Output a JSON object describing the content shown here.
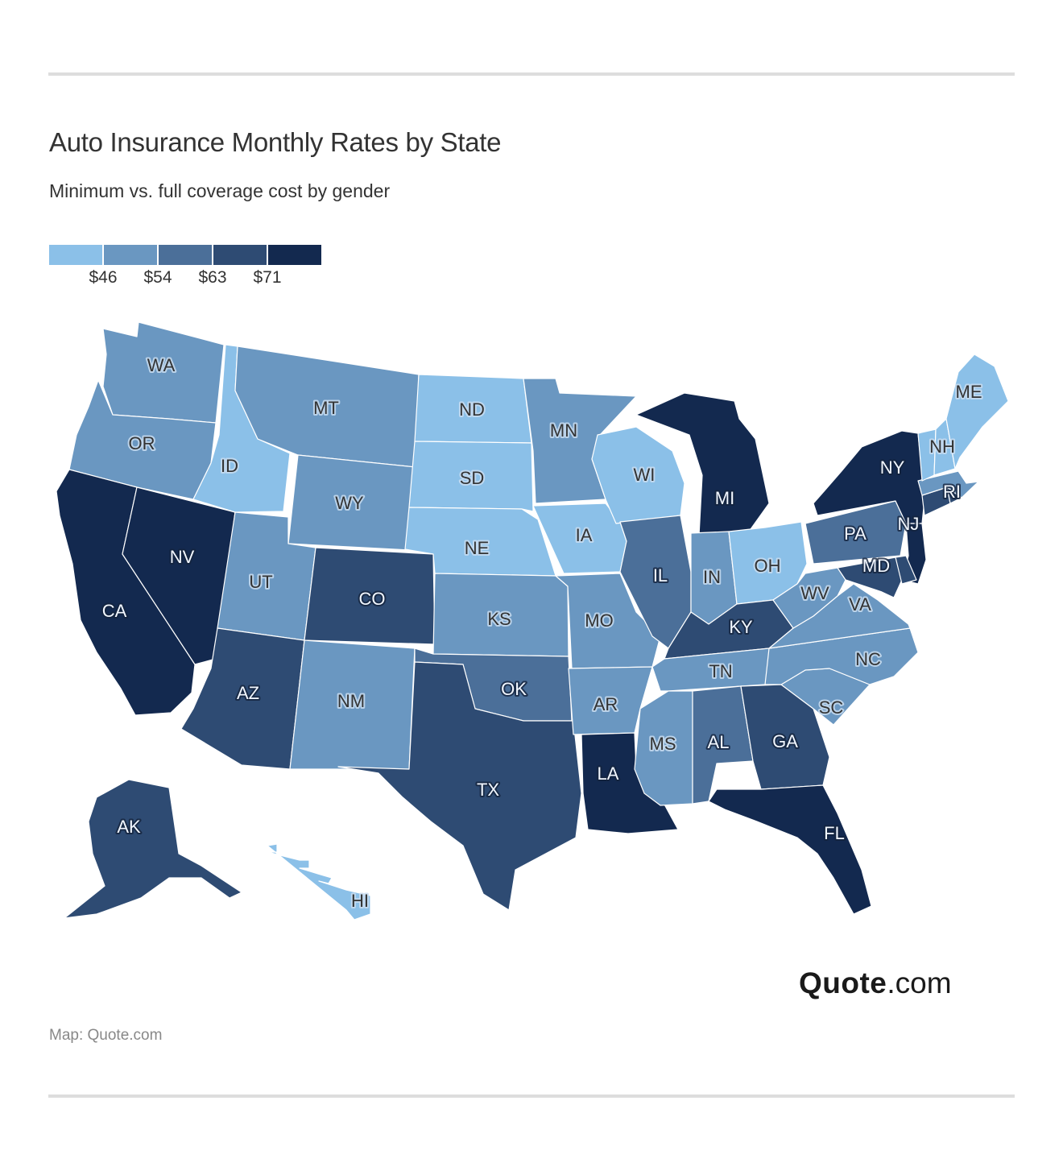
{
  "header": {
    "title": "Auto Insurance Monthly Rates by State",
    "subtitle": "Minimum vs. full coverage cost by gender"
  },
  "legend": {
    "colors": [
      "#8BC0E8",
      "#6A97C1",
      "#4B6F99",
      "#2E4B73",
      "#13294F"
    ],
    "ticks": [
      "$46",
      "$54",
      "$63",
      "$71"
    ]
  },
  "map": {
    "type": "choropleth",
    "region": "United States",
    "states": [
      {
        "abbr": "WA",
        "bin": 1
      },
      {
        "abbr": "OR",
        "bin": 1
      },
      {
        "abbr": "CA",
        "bin": 4
      },
      {
        "abbr": "NV",
        "bin": 4
      },
      {
        "abbr": "ID",
        "bin": 0
      },
      {
        "abbr": "MT",
        "bin": 1
      },
      {
        "abbr": "WY",
        "bin": 1
      },
      {
        "abbr": "UT",
        "bin": 1
      },
      {
        "abbr": "AZ",
        "bin": 3
      },
      {
        "abbr": "CO",
        "bin": 3
      },
      {
        "abbr": "NM",
        "bin": 1
      },
      {
        "abbr": "ND",
        "bin": 0
      },
      {
        "abbr": "SD",
        "bin": 0
      },
      {
        "abbr": "NE",
        "bin": 0
      },
      {
        "abbr": "KS",
        "bin": 1
      },
      {
        "abbr": "OK",
        "bin": 2
      },
      {
        "abbr": "TX",
        "bin": 3
      },
      {
        "abbr": "MN",
        "bin": 1
      },
      {
        "abbr": "IA",
        "bin": 0
      },
      {
        "abbr": "MO",
        "bin": 1
      },
      {
        "abbr": "AR",
        "bin": 1
      },
      {
        "abbr": "LA",
        "bin": 4
      },
      {
        "abbr": "WI",
        "bin": 0
      },
      {
        "abbr": "IL",
        "bin": 2
      },
      {
        "abbr": "MI",
        "bin": 4
      },
      {
        "abbr": "IN",
        "bin": 1
      },
      {
        "abbr": "OH",
        "bin": 0
      },
      {
        "abbr": "KY",
        "bin": 3
      },
      {
        "abbr": "TN",
        "bin": 1
      },
      {
        "abbr": "MS",
        "bin": 1
      },
      {
        "abbr": "AL",
        "bin": 2
      },
      {
        "abbr": "GA",
        "bin": 3
      },
      {
        "abbr": "FL",
        "bin": 4
      },
      {
        "abbr": "SC",
        "bin": 1
      },
      {
        "abbr": "NC",
        "bin": 1
      },
      {
        "abbr": "VA",
        "bin": 1
      },
      {
        "abbr": "WV",
        "bin": 1
      },
      {
        "abbr": "PA",
        "bin": 2
      },
      {
        "abbr": "NY",
        "bin": 4
      },
      {
        "abbr": "NJ",
        "bin": 4
      },
      {
        "abbr": "MD",
        "bin": 3
      },
      {
        "abbr": "DE",
        "bin": 3
      },
      {
        "abbr": "CT",
        "bin": 3
      },
      {
        "abbr": "RI",
        "bin": 3
      },
      {
        "abbr": "MA",
        "bin": 1
      },
      {
        "abbr": "VT",
        "bin": 0
      },
      {
        "abbr": "NH",
        "bin": 0
      },
      {
        "abbr": "ME",
        "bin": 0
      },
      {
        "abbr": "AK",
        "bin": 3
      },
      {
        "abbr": "HI",
        "bin": 0
      }
    ]
  },
  "branding": {
    "logo_bold": "Quote",
    "logo_light": ".com"
  },
  "footer": {
    "source": "Map: Quote.com"
  }
}
